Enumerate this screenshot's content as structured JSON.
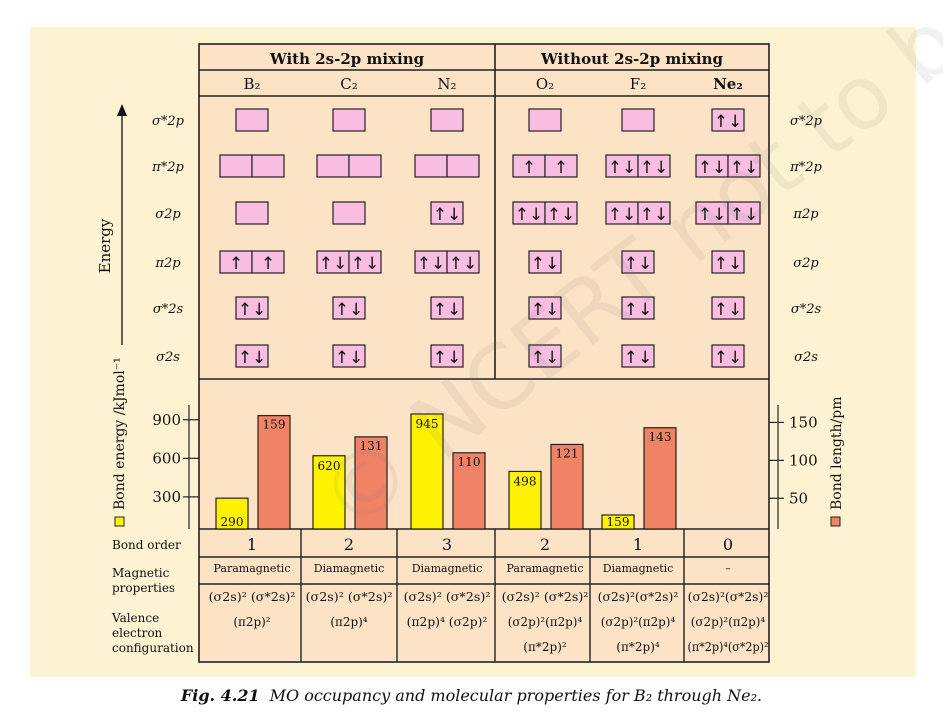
{
  "header": {
    "with_mixing": "With 2s-2p mixing",
    "without_mixing": "Without 2s-2p mixing"
  },
  "molecules": [
    "B₂",
    "C₂",
    "N₂",
    "O₂",
    "F₂",
    "Ne₂"
  ],
  "energy_axis_label": "Energy",
  "orbital_labels_left": [
    "σ*2p",
    "π*2p",
    "σ2p",
    "π2p",
    "σ*2s",
    "σ2s"
  ],
  "orbital_labels_right": [
    "σ*2p",
    "π*2p",
    "π2p",
    "σ2p",
    "σ*2s",
    "σ2s"
  ],
  "occupancy": [
    {
      "molecule": "B₂",
      "rows": [
        [
          ""
        ],
        [
          "",
          ""
        ],
        [
          ""
        ],
        [
          "↑",
          "↑"
        ],
        [
          "↑↓"
        ],
        [
          "↑↓"
        ]
      ]
    },
    {
      "molecule": "C₂",
      "rows": [
        [
          ""
        ],
        [
          "",
          ""
        ],
        [
          ""
        ],
        [
          "↑↓",
          "↑↓"
        ],
        [
          "↑↓"
        ],
        [
          "↑↓"
        ]
      ]
    },
    {
      "molecule": "N₂",
      "rows": [
        [
          ""
        ],
        [
          "",
          ""
        ],
        [
          "↑↓"
        ],
        [
          "↑↓",
          "↑↓"
        ],
        [
          "↑↓"
        ],
        [
          "↑↓"
        ]
      ]
    },
    {
      "molecule": "O₂",
      "rows": [
        [
          ""
        ],
        [
          "↑",
          "↑"
        ],
        [
          "↑↓",
          "↑↓"
        ],
        [
          "↑↓"
        ],
        [
          "↑↓"
        ],
        [
          "↑↓"
        ]
      ]
    },
    {
      "molecule": "F₂",
      "rows": [
        [
          ""
        ],
        [
          "↑↓",
          "↑↓"
        ],
        [
          "↑↓",
          "↑↓"
        ],
        [
          "↑↓"
        ],
        [
          "↑↓"
        ],
        [
          "↑↓"
        ]
      ]
    },
    {
      "molecule": "Ne₂",
      "rows": [
        [
          "↑↓"
        ],
        [
          "↑↓",
          "↑↓"
        ],
        [
          "↑↓",
          "↑↓"
        ],
        [
          "↑↓"
        ],
        [
          "↑↓"
        ],
        [
          "↑↓"
        ]
      ]
    }
  ],
  "chart_data": {
    "type": "bar",
    "categories": [
      "B₂",
      "C₂",
      "N₂",
      "O₂",
      "F₂",
      "Ne₂"
    ],
    "series": [
      {
        "name": "Bond energy /kJmol⁻¹",
        "axis": "left",
        "color": "#fff200",
        "values": [
          290,
          620,
          945,
          498,
          159,
          null
        ]
      },
      {
        "name": "Bond length/pm",
        "axis": "right",
        "color": "#f08266",
        "values": [
          159,
          131,
          110,
          121,
          143,
          null
        ]
      }
    ],
    "left_axis": {
      "label": "Bond energy /kJmol⁻¹",
      "ticks": [
        300,
        600,
        900
      ],
      "range": [
        50,
        1015
      ]
    },
    "right_axis": {
      "label": "Bond length/pm",
      "ticks": [
        50,
        100,
        150
      ],
      "range": [
        9.5,
        173
      ]
    }
  },
  "table": {
    "bond_order_label": "Bond order",
    "bond_order": [
      "1",
      "2",
      "3",
      "2",
      "1",
      "0"
    ],
    "magnetic_label_1": "Magnetic",
    "magnetic_label_2": "properties",
    "magnetic": [
      "Paramagnetic",
      "Diamagnetic",
      "Diamagnetic",
      "Paramagnetic",
      "Diamagnetic",
      "–"
    ],
    "config_label_1": "Valence",
    "config_label_2": "electron",
    "config_label_3": "configuration",
    "config": [
      [
        "(σ2s)² (σ*2s)²",
        "(π2p)²"
      ],
      [
        "(σ2s)² (σ*2s)²",
        "(π2p)⁴"
      ],
      [
        "(σ2s)² (σ*2s)²",
        "(π2p)⁴ (σ2p)²"
      ],
      [
        "(σ2s)² (σ*2s)²",
        "(σ2p)²(π2p)⁴",
        "(π*2p)²"
      ],
      [
        "(σ2s)²(σ*2s)²",
        "(σ2p)²(π2p)⁴",
        "(π*2p)⁴"
      ],
      [
        "(σ2s)²(σ*2s)²",
        "(σ2p)²(π2p)⁴",
        "(π*2p)⁴(σ*2p)²"
      ]
    ]
  },
  "caption": {
    "label": "Fig. 4.21",
    "text": "MO occupancy and molecular properties for B₂ through Ne₂."
  },
  "watermark": "© NCERT not to be republished",
  "colors": {
    "panel": "#fde3c6",
    "outer": "#fdf3d2",
    "box": "#f8bde0",
    "energy_bar": "#fff200",
    "length_bar": "#f08266"
  }
}
